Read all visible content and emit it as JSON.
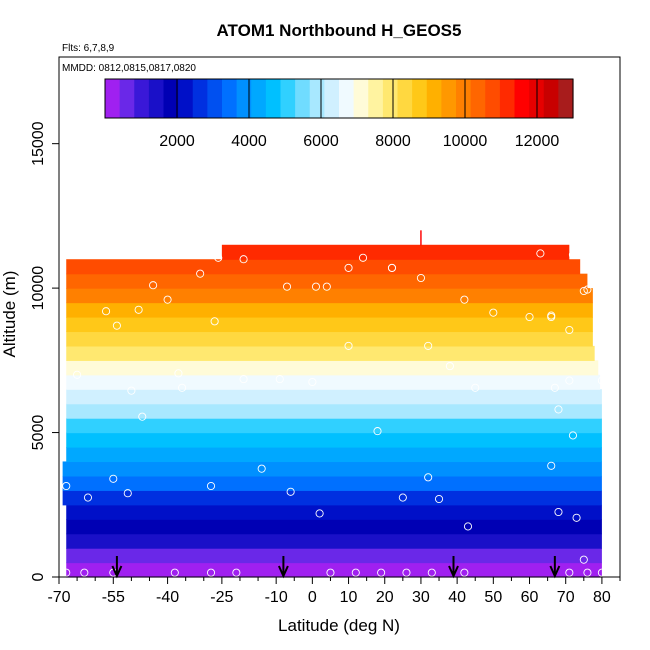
{
  "chart_data": {
    "type": "heatmap",
    "title": "ATOM1 Northbound H_GEOS5",
    "flights_note": "Flts: 6,7,8,9",
    "dates_note": "MMDD: 0812,0815,0817,0820",
    "xlabel": "Latitude (deg N)",
    "ylabel": "Altitude (m)",
    "xlim": [
      -70,
      85
    ],
    "ylim": [
      0,
      18000
    ],
    "x_ticks": [
      -70,
      -55,
      -40,
      -25,
      -10,
      0,
      10,
      20,
      30,
      40,
      50,
      60,
      70,
      80
    ],
    "x_tick_labels": [
      "-70",
      "-55",
      "-40",
      "-25",
      "-10",
      "0",
      "10",
      "20",
      "30",
      "40",
      "50",
      "60",
      "70",
      "80"
    ],
    "x_minor_ticks": [
      -65,
      -60,
      -50,
      -45,
      -35,
      -30,
      -20,
      -15,
      -5,
      5,
      15,
      25,
      35,
      45,
      55,
      65,
      75,
      85
    ],
    "y_ticks": [
      0,
      5000,
      10000,
      15000
    ],
    "y_tick_labels": [
      "0",
      "5000",
      "10000",
      "15000"
    ],
    "colorbar": {
      "range": [
        0,
        13000
      ],
      "ticks": [
        2000,
        4000,
        6000,
        8000,
        10000,
        12000
      ],
      "tick_labels": [
        "2000",
        "4000",
        "6000",
        "8000",
        "10000",
        "12000"
      ],
      "colors": [
        "#a020f0",
        "#6a28e8",
        "#3a18d8",
        "#1a10c8",
        "#0000b4",
        "#0010c8",
        "#0030e0",
        "#0050f0",
        "#0070ff",
        "#0090ff",
        "#00a8ff",
        "#00c0ff",
        "#30d0ff",
        "#70dcff",
        "#a8e8ff",
        "#d0f0ff",
        "#f0faff",
        "#fffbd8",
        "#fff3a0",
        "#ffe870",
        "#ffd840",
        "#ffc818",
        "#ffb000",
        "#ff9800",
        "#ff8000",
        "#ff6600",
        "#ff4c00",
        "#ff2a00",
        "#ff0000",
        "#e60000",
        "#c80000",
        "#a81c1c"
      ]
    },
    "band_height_m": 500,
    "lat_extent": {
      "altitudes": [
        0,
        500,
        1000,
        1500,
        2000,
        2500,
        3000,
        3500,
        4000,
        4500,
        5000,
        5500,
        6000,
        6500,
        7000,
        7500,
        8000,
        8500,
        9000,
        9500,
        10000,
        10500,
        11000,
        11500
      ],
      "lat_min": [
        -68,
        -68,
        -68,
        -68,
        -68,
        -69,
        -69,
        -69,
        -68,
        -68,
        -68,
        -68,
        -68,
        -68,
        -68,
        -68,
        -68,
        -68,
        -68,
        -68,
        -68,
        -68,
        -25,
        29.8
      ],
      "lat_max": [
        80,
        80,
        80,
        80,
        80,
        80,
        80,
        80,
        80,
        80,
        80,
        80,
        80,
        79.5,
        79,
        78,
        77.5,
        77.5,
        77.5,
        77.5,
        76,
        74,
        71,
        30.2
      ]
    },
    "sample_points": {
      "lat": [
        -68,
        -63,
        -55,
        -38,
        -28,
        -21,
        5,
        12,
        19,
        26,
        33,
        42,
        71,
        76,
        80,
        75,
        73,
        68,
        66,
        43,
        25,
        35,
        32,
        18,
        2,
        -6,
        -14,
        -28,
        -55,
        -51,
        -62,
        -68,
        -47,
        -50,
        -36,
        -19,
        -9,
        0,
        45,
        67,
        71,
        80,
        -65,
        -37,
        -54,
        -57,
        -27,
        10,
        38,
        68,
        72,
        76,
        71,
        66,
        60,
        50,
        42,
        30,
        22,
        10,
        4,
        -44,
        -48,
        -40,
        -31,
        -7,
        1,
        14,
        22,
        38,
        66,
        75,
        72,
        63,
        -26,
        -33,
        -19,
        32
      ],
      "alt": [
        150,
        150,
        150,
        150,
        150,
        150,
        150,
        150,
        150,
        150,
        150,
        150,
        150,
        150,
        150,
        600,
        2050,
        2250,
        3850,
        1750,
        2750,
        2700,
        3450,
        5050,
        2200,
        2950,
        3750,
        3150,
        3400,
        2900,
        2750,
        3150,
        5550,
        6450,
        6550,
        6850,
        6850,
        6750,
        6550,
        6550,
        6800,
        6800,
        7000,
        7050,
        8700,
        9200,
        8850,
        8000,
        7300,
        5800,
        4900,
        9950,
        8550,
        9000,
        9000,
        9150,
        9600,
        10350,
        10700,
        10700,
        10050,
        10100,
        9250,
        9600,
        10500,
        10050,
        10050,
        11050,
        10700,
        7300,
        9050,
        9900,
        11150,
        11200,
        11050,
        11250,
        11000,
        8000
      ]
    },
    "flight_markers_lat": [
      -54,
      -8,
      39,
      67
    ]
  }
}
